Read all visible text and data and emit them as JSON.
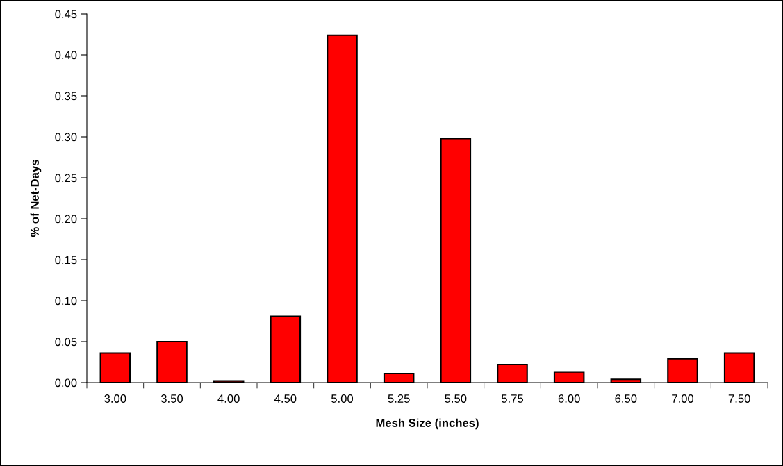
{
  "chart_data": {
    "type": "bar",
    "xlabel": "Mesh Size (inches)",
    "ylabel": "% of Net-Days",
    "categories": [
      "3.00",
      "3.50",
      "4.00",
      "4.50",
      "5.00",
      "5.25",
      "5.50",
      "5.75",
      "6.00",
      "6.50",
      "7.00",
      "7.50"
    ],
    "values": [
      0.036,
      0.05,
      0.002,
      0.081,
      0.424,
      0.011,
      0.298,
      0.022,
      0.013,
      0.004,
      0.029,
      0.036
    ],
    "color": "#ff0000",
    "ylim": [
      0,
      0.45
    ],
    "yticks": [
      {
        "value": 0,
        "label": "0.00"
      },
      {
        "value": 0.05,
        "label": "0.05"
      },
      {
        "value": 0.1,
        "label": "0.10"
      },
      {
        "value": 0.15,
        "label": "0.15"
      },
      {
        "value": 0.2,
        "label": "0.20"
      },
      {
        "value": 0.25,
        "label": "0.25"
      },
      {
        "value": 0.3,
        "label": "0.30"
      },
      {
        "value": 0.35,
        "label": "0.35"
      },
      {
        "value": 0.4,
        "label": "0.40"
      },
      {
        "value": 0.45,
        "label": "0.45"
      }
    ],
    "grid": false,
    "legend": false
  }
}
